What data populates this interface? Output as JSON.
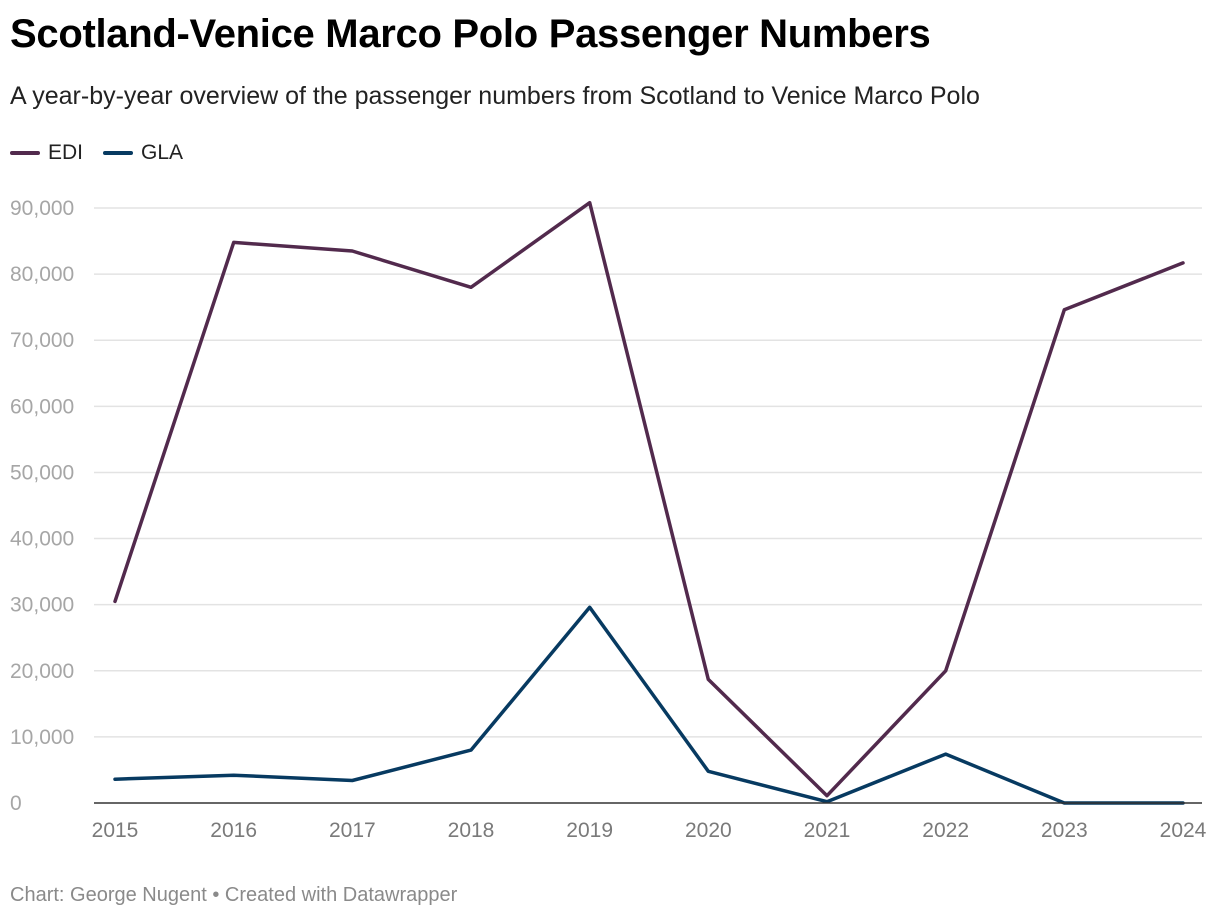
{
  "title": "Scotland-Venice Marco Polo Passenger Numbers",
  "subtitle": "A year-by-year overview of the passenger numbers from Scotland to Venice Marco Polo",
  "footer": {
    "credit": "Chart: George Nugent",
    "separator": "•",
    "created_with": "Created with Datawrapper"
  },
  "chart_data": {
    "type": "line",
    "title": "Scotland-Venice Marco Polo Passenger Numbers",
    "x": [
      "2015",
      "2016",
      "2017",
      "2018",
      "2019",
      "2020",
      "2021",
      "2022",
      "2023",
      "2024"
    ],
    "series": [
      {
        "name": "EDI",
        "color": "#522a4d",
        "values": [
          30500,
          84800,
          83500,
          78000,
          90800,
          18700,
          1100,
          20000,
          74600,
          81700
        ]
      },
      {
        "name": "GLA",
        "color": "#073a61",
        "values": [
          3600,
          4200,
          3400,
          8000,
          29600,
          4800,
          200,
          7400,
          0,
          0
        ]
      }
    ],
    "y_ticks": [
      "0",
      "10,000",
      "20,000",
      "30,000",
      "40,000",
      "50,000",
      "60,000",
      "70,000",
      "80,000",
      "90,000"
    ],
    "y_tick_values": [
      0,
      10000,
      20000,
      30000,
      40000,
      50000,
      60000,
      70000,
      80000,
      90000
    ],
    "ylim": [
      0,
      90000
    ],
    "xlabel": "",
    "ylabel": "",
    "grid": true,
    "legend": "top-left"
  }
}
